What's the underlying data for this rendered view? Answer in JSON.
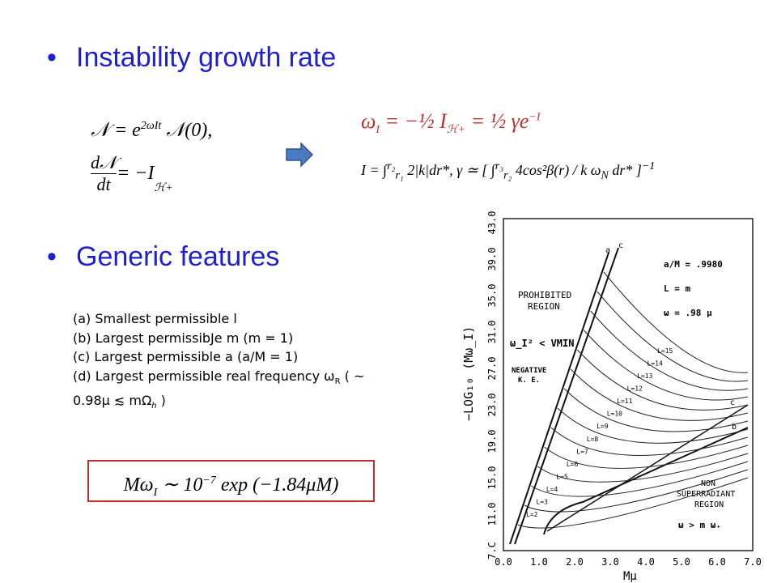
{
  "bullets": [
    {
      "title": "Instability growth rate"
    },
    {
      "title": "Generic features"
    }
  ],
  "equations": {
    "left": {
      "line1": [
        "𝒩 = e",
        "2ωIt",
        " 𝒩(0),"
      ],
      "line2": [
        "d𝒩",
        "dt",
        " = −I",
        "ℋ+"
      ]
    },
    "right": {
      "line1": [
        "ω",
        "I",
        " = −½ I",
        "ℋ+",
        " = ½ γe",
        "−I"
      ],
      "line2": [
        "I = ∫",
        "r₂",
        "r₁",
        " 2|k|dr*,    γ ≃ [ ∫",
        "r₃",
        "r₂",
        " 4cos²β(r) / k  ω",
        "N",
        " dr* ]",
        "−1"
      ]
    }
  },
  "features": [
    "(a) Smallest permissible  l",
    "(b) Largest permissibJe m (m = 1)",
    "(c) Largest permissible a (a/M = 1)",
    [
      "(d) Largest permissible real frequency ω",
      "R",
      " ( ~"
    ],
    [
      "0.98μ  ≲ mΩ",
      "h",
      " )"
    ]
  ],
  "boxed_formula": [
    "Mω",
    "I",
    " ∼ 10",
    "−7",
    " exp (−1.84μM)"
  ],
  "figure": {
    "y_ticks": [
      "7.C",
      "11.0",
      "15.0",
      "19.0",
      "23.0",
      "27.0",
      "31.0",
      "35.0",
      "39.0",
      "43.0"
    ],
    "x_ticks": [
      "0.0",
      "1.0",
      "2.0",
      "3.0",
      "4.0",
      "5.0",
      "6.0",
      "7.0"
    ],
    "y_label": "−LOG₁₀ (Mω_I)",
    "x_label": "Mμ",
    "params": [
      "a/M = .9980",
      "L = m",
      "ω = .98 μ"
    ],
    "regions": {
      "prohibited": [
        "PROHIBITED",
        "REGION"
      ],
      "vmin": "ω_I² < VMIN",
      "negative": [
        "NEGATIVE",
        "K. E."
      ],
      "non_superradiant": [
        "NON",
        "SUPERRADIANT",
        "REGION"
      ],
      "condition": "ω > m ω₊"
    },
    "curve_labels": [
      "L=2",
      "L=3",
      "L=4",
      "L=5",
      "L=6",
      "L=7",
      "L=8",
      "L=9",
      "L=10",
      "L=11",
      "L=12",
      "L=13",
      "L=14",
      "L=15"
    ],
    "line_tags": [
      "a",
      "c",
      "c",
      "b"
    ]
  }
}
